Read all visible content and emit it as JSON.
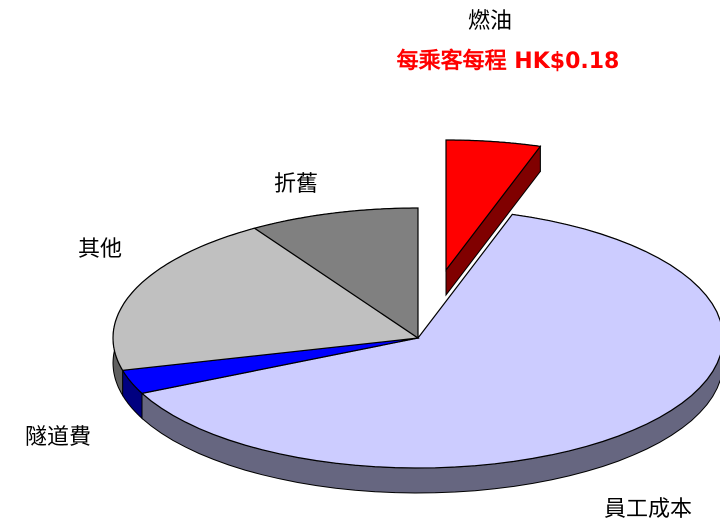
{
  "chart_data": {
    "type": "pie3d",
    "categories": [
      "燃油",
      "員工成本",
      "隧道費",
      "其他",
      "折舊"
    ],
    "values": [
      5,
      63,
      3,
      20,
      9
    ],
    "colors": [
      "#ff0000",
      "#ccccff",
      "#0000ff",
      "#c0c0c0",
      "#808080"
    ],
    "side_colors": [
      "#800000",
      "#666680",
      "#000080",
      "#606060",
      "#404040"
    ],
    "exploded": [
      true,
      false,
      false,
      false,
      false
    ],
    "annotation": "每乘客每程 HK$0.18"
  }
}
